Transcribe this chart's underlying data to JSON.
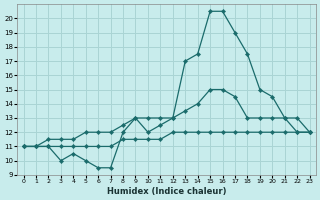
{
  "xlabel": "Humidex (Indice chaleur)",
  "bg_color": "#c8ecec",
  "grid_color": "#aad4d4",
  "line_color": "#1a6b6b",
  "xlim": [
    -0.5,
    23.5
  ],
  "ylim": [
    9,
    21
  ],
  "yticks": [
    9,
    10,
    11,
    12,
    13,
    14,
    15,
    16,
    17,
    18,
    19,
    20
  ],
  "xticks": [
    0,
    1,
    2,
    3,
    4,
    5,
    6,
    7,
    8,
    9,
    10,
    11,
    12,
    13,
    14,
    15,
    16,
    17,
    18,
    19,
    20,
    21,
    22,
    23
  ],
  "line1_x": [
    0,
    1,
    2,
    3,
    4,
    5,
    6,
    7,
    8,
    9,
    10,
    11,
    12,
    13,
    14,
    15,
    16,
    17,
    18,
    19,
    20,
    21,
    22,
    23
  ],
  "line1_y": [
    11,
    11,
    11,
    10,
    10.5,
    10,
    9.5,
    9.5,
    12,
    13,
    12,
    12.5,
    13,
    17,
    17.5,
    20.5,
    20.5,
    19,
    17.5,
    15,
    14.5,
    13,
    13,
    12
  ],
  "line2_x": [
    0,
    1,
    2,
    3,
    4,
    5,
    6,
    7,
    8,
    9,
    10,
    11,
    12,
    13,
    14,
    15,
    16,
    17,
    18,
    19,
    20,
    21,
    22,
    23
  ],
  "line2_y": [
    11,
    11,
    11.5,
    11.5,
    11.5,
    12,
    12,
    12,
    12.5,
    13,
    13,
    13,
    13,
    13.5,
    14,
    15,
    15,
    14.5,
    13,
    13,
    13,
    13,
    12,
    12
  ],
  "line3_x": [
    0,
    1,
    2,
    3,
    4,
    5,
    6,
    7,
    8,
    9,
    10,
    11,
    12,
    13,
    14,
    15,
    16,
    17,
    18,
    19,
    20,
    21,
    22,
    23
  ],
  "line3_y": [
    11,
    11,
    11,
    11,
    11,
    11,
    11,
    11,
    11.5,
    11.5,
    11.5,
    11.5,
    12,
    12,
    12,
    12,
    12,
    12,
    12,
    12,
    12,
    12,
    12,
    12
  ]
}
